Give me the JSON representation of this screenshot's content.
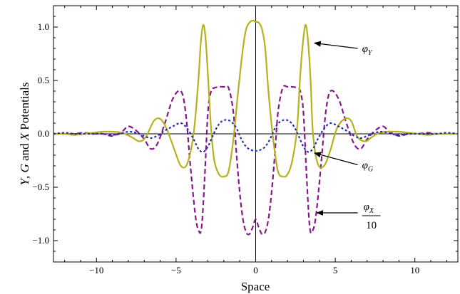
{
  "chart_data": {
    "type": "line",
    "xlabel": "Space",
    "ylabel_parts": [
      "Y",
      ", ",
      "G",
      " and ",
      "X",
      " Potentials"
    ],
    "xlim": [
      -12.7,
      12.7
    ],
    "ylim": [
      -1.2,
      1.2
    ],
    "x_ticks": [
      -10,
      -5,
      0,
      5,
      10
    ],
    "x_tick_labels": [
      "−10",
      "−5",
      "0",
      "5",
      "10"
    ],
    "y_ticks": [
      -1.0,
      -0.5,
      0.0,
      0.5,
      1.0
    ],
    "y_tick_labels": [
      "−1.0",
      "−0.5",
      "0.0",
      "0.5",
      "1.0"
    ],
    "grid": false,
    "colors": {
      "phiY": "#b5b21e",
      "phiX": "#86198a",
      "phiG": "#1f2fb5"
    },
    "series": [
      {
        "name": "φY",
        "style": "solid",
        "x": [
          -12.7,
          -12.0,
          -11.4,
          -10.8,
          -10.2,
          -9.6,
          -9.0,
          -8.4,
          -7.8,
          -7.3,
          -6.9,
          -6.4,
          -6.0,
          -5.6,
          -5.1,
          -4.7,
          -4.3,
          -3.9,
          -3.6,
          -3.45,
          -3.3,
          -3.15,
          -3.0,
          -2.8,
          -2.6,
          -2.3,
          -2.0,
          -1.7,
          -1.4,
          -1.1,
          -0.8,
          -0.6,
          -0.4,
          -0.2,
          0.0,
          0.2,
          0.4,
          0.6,
          0.8,
          1.1,
          1.4,
          1.7,
          2.0,
          2.3,
          2.6,
          2.8,
          3.0,
          3.15,
          3.3,
          3.45,
          3.6,
          3.9,
          4.3,
          4.7,
          5.1,
          5.6,
          6.0,
          6.4,
          6.9,
          7.3,
          7.8,
          8.4,
          9.0,
          9.6,
          10.2,
          10.8,
          11.4,
          12.0,
          12.7
        ],
        "y": [
          0.0,
          0.0,
          -0.01,
          0.0,
          0.01,
          0.02,
          0.02,
          0.01,
          -0.03,
          -0.07,
          -0.03,
          0.12,
          0.14,
          0.05,
          -0.15,
          -0.3,
          -0.28,
          0.0,
          0.5,
          0.85,
          1.02,
          0.9,
          0.55,
          0.05,
          -0.25,
          -0.38,
          -0.4,
          -0.35,
          -0.05,
          0.4,
          0.8,
          0.98,
          1.04,
          1.06,
          1.05,
          1.04,
          0.98,
          0.8,
          0.4,
          -0.05,
          -0.35,
          -0.4,
          -0.38,
          -0.25,
          0.05,
          0.55,
          0.9,
          1.02,
          0.85,
          0.5,
          0.0,
          -0.28,
          -0.3,
          -0.15,
          0.05,
          0.14,
          0.12,
          -0.03,
          -0.07,
          -0.03,
          0.01,
          0.02,
          0.02,
          0.01,
          0.0,
          -0.01,
          0.0,
          0.0,
          0.0
        ]
      },
      {
        "name": "φX/10",
        "style": "dashed",
        "x": [
          -12.7,
          -12.0,
          -11.4,
          -10.8,
          -10.2,
          -9.6,
          -9.0,
          -8.4,
          -8.0,
          -7.5,
          -7.0,
          -6.6,
          -6.2,
          -5.7,
          -5.2,
          -4.7,
          -4.4,
          -4.1,
          -3.8,
          -3.6,
          -3.4,
          -3.2,
          -3.0,
          -2.8,
          -2.6,
          -2.3,
          -2.0,
          -1.7,
          -1.4,
          -1.2,
          -1.0,
          -0.8,
          -0.6,
          -0.4,
          -0.2,
          0.0,
          0.2,
          0.4,
          0.6,
          0.8,
          1.0,
          1.2,
          1.4,
          1.7,
          2.0,
          2.3,
          2.6,
          2.8,
          3.0,
          3.2,
          3.4,
          3.6,
          3.8,
          4.1,
          4.4,
          4.7,
          5.2,
          5.7,
          6.2,
          6.6,
          7.0,
          7.5,
          8.0,
          8.4,
          9.0,
          9.6,
          10.2,
          10.8,
          11.4,
          12.0,
          12.7
        ],
        "y": [
          0.0,
          0.0,
          0.0,
          0.01,
          0.0,
          0.0,
          -0.02,
          0.02,
          0.07,
          0.03,
          -0.05,
          -0.14,
          -0.1,
          0.1,
          0.33,
          0.4,
          0.2,
          -0.3,
          -0.75,
          -0.9,
          -0.88,
          -0.4,
          0.2,
          0.4,
          0.43,
          0.44,
          0.44,
          0.43,
          0.2,
          -0.2,
          -0.55,
          -0.8,
          -0.92,
          -0.94,
          -0.88,
          -0.8,
          -0.88,
          -0.94,
          -0.92,
          -0.8,
          -0.55,
          -0.2,
          0.2,
          0.43,
          0.44,
          0.44,
          0.43,
          0.4,
          0.2,
          -0.4,
          -0.88,
          -0.9,
          -0.75,
          -0.3,
          0.2,
          0.4,
          0.33,
          0.1,
          -0.1,
          -0.14,
          -0.05,
          0.03,
          0.07,
          0.02,
          -0.02,
          0.0,
          0.0,
          0.01,
          0.0,
          0.0,
          0.0
        ]
      },
      {
        "name": "φG",
        "style": "dotted",
        "x": [
          -12.7,
          -12.0,
          -11.4,
          -10.8,
          -10.2,
          -9.6,
          -9.0,
          -8.5,
          -8.0,
          -7.5,
          -7.0,
          -6.6,
          -6.2,
          -5.7,
          -5.2,
          -4.7,
          -4.3,
          -3.9,
          -3.6,
          -3.3,
          -3.0,
          -2.7,
          -2.4,
          -2.1,
          -1.8,
          -1.5,
          -1.2,
          -0.9,
          -0.6,
          -0.3,
          0.0,
          0.3,
          0.6,
          0.9,
          1.2,
          1.5,
          1.8,
          2.1,
          2.4,
          2.7,
          3.0,
          3.3,
          3.6,
          3.9,
          4.3,
          4.7,
          5.2,
          5.7,
          6.2,
          6.6,
          7.0,
          7.5,
          8.0,
          8.5,
          9.0,
          9.6,
          10.2,
          10.8,
          11.4,
          12.0,
          12.7
        ],
        "y": [
          0.0,
          0.01,
          0.0,
          0.0,
          0.0,
          0.0,
          -0.01,
          0.0,
          0.02,
          0.01,
          -0.02,
          -0.04,
          -0.02,
          0.03,
          0.07,
          0.1,
          0.05,
          -0.05,
          -0.14,
          -0.17,
          -0.12,
          -0.02,
          0.07,
          0.12,
          0.13,
          0.11,
          0.05,
          -0.05,
          -0.12,
          -0.15,
          -0.16,
          -0.15,
          -0.12,
          -0.05,
          0.05,
          0.11,
          0.13,
          0.12,
          0.07,
          -0.02,
          -0.12,
          -0.17,
          -0.14,
          -0.05,
          0.05,
          0.1,
          0.07,
          0.03,
          -0.02,
          -0.04,
          -0.02,
          0.01,
          0.02,
          0.0,
          -0.01,
          0.0,
          0.0,
          0.0,
          0.0,
          0.01,
          0.0
        ]
      }
    ],
    "annotations": [
      {
        "label": "φ",
        "sub": "Y",
        "text_x": 6.5,
        "text_y": 0.8,
        "arrow_to_x": 3.6,
        "arrow_to_y": 0.85
      },
      {
        "label": "φ",
        "sub": "G",
        "text_x": 6.5,
        "text_y": -0.29,
        "arrow_to_x": 3.6,
        "arrow_to_y": -0.18
      },
      {
        "label": "φ",
        "sub": "X",
        "denominator": "10",
        "text_x": 6.5,
        "text_y": -0.74,
        "arrow_to_x": 3.75,
        "arrow_to_y": -0.74
      }
    ]
  }
}
